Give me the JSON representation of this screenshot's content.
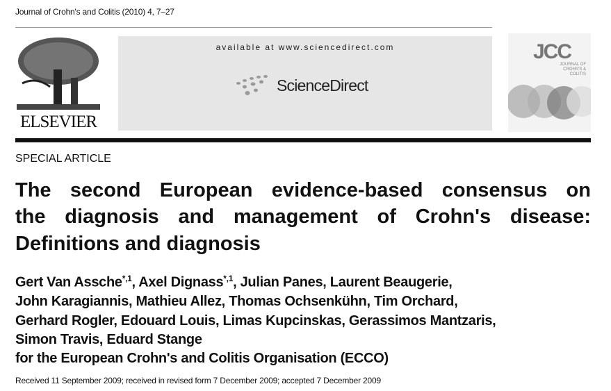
{
  "header": {
    "journal_citation": "Journal of Crohn's and Colitis (2010) 4, 7–27",
    "publisher_logo_text": "ELSEVIER",
    "available_text": "available at www.sciencedirect.com",
    "sciencedirect_logo_text": "ScienceDirect",
    "cover_logo_text": "JCC",
    "cover_subtitle": "JOURNAL OF CROHN'S & COLITIS"
  },
  "article": {
    "type": "SPECIAL ARTICLE",
    "title_lines": [
      "The second European evidence-based consensus on",
      "the diagnosis and management of Crohn's disease:",
      "Definitions and diagnosis"
    ],
    "authors": {
      "line1_a": "Gert Van Assche",
      "line1_a_sup": "*,1",
      "line1_b": ", Axel Dignass",
      "line1_b_sup": "*,1",
      "line1_c": ", Julian Panes, Laurent Beaugerie,",
      "line2": "John Karagiannis, Mathieu Allez, Thomas Ochsenkühn, Tim Orchard,",
      "line3": "Gerhard Rogler, Edouard Louis, Limas Kupcinskas, Gerassimos Mantzaris,",
      "line4": "Simon Travis, Eduard Stange",
      "line5": "for the European Crohn's and Colitis Organisation (ECCO)"
    },
    "received": "Received 11 September 2009; received in revised form 7 December 2009; accepted 7 December 2009"
  }
}
